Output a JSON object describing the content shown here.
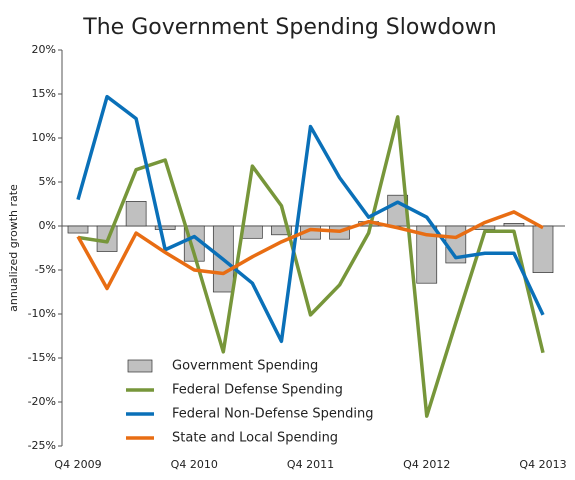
{
  "chart_data": {
    "type": "bar-line",
    "title": "The Government Spending Slowdown",
    "y_label": "annualized growth rate",
    "categories": [
      "Q4 2009",
      null,
      null,
      null,
      "Q4 2010",
      null,
      null,
      null,
      "Q4 2011",
      null,
      null,
      null,
      "Q4 2012",
      null,
      null,
      null,
      "Q4 2013"
    ],
    "ylim": [
      -25,
      20
    ],
    "yticks": [
      {
        "value": -25,
        "label": "-25%"
      },
      {
        "value": -20,
        "label": "-20%"
      },
      {
        "value": -15,
        "label": "-15%"
      },
      {
        "value": -10,
        "label": "-10%"
      },
      {
        "value": -5,
        "label": "-5%"
      },
      {
        "value": 0,
        "label": "0%"
      },
      {
        "value": 5,
        "label": "5%"
      },
      {
        "value": 10,
        "label": "10%"
      },
      {
        "value": 15,
        "label": "15%"
      },
      {
        "value": 20,
        "label": "20%"
      }
    ],
    "series": [
      {
        "name": "Government Spending",
        "kind": "bar",
        "color": "#c0c0c0",
        "values": [
          -0.8,
          -2.9,
          2.8,
          -0.4,
          -4.0,
          -7.5,
          -1.4,
          -1.0,
          -1.5,
          -1.5,
          0.5,
          3.5,
          -6.5,
          -4.2,
          -0.4,
          0.3,
          -5.3
        ]
      },
      {
        "name": "Federal Defense Spending",
        "kind": "line",
        "color": "#77963a",
        "values": [
          -1.3,
          -1.8,
          6.4,
          7.5,
          -3.2,
          -14.3,
          6.8,
          2.3,
          -10.1,
          -6.7,
          -0.8,
          12.4,
          -21.6,
          -11.0,
          -0.6,
          -0.6,
          -14.4
        ]
      },
      {
        "name": "Federal Non-Defense Spending",
        "kind": "line",
        "color": "#0a70b8",
        "values": [
          3.0,
          14.7,
          12.2,
          -2.7,
          -1.2,
          -3.8,
          -6.5,
          -13.1,
          11.3,
          5.5,
          1.0,
          2.7,
          1.0,
          -3.6,
          -3.1,
          -3.1,
          -10.1
        ]
      },
      {
        "name": "State and Local Spending",
        "kind": "line",
        "color": "#e86d13",
        "values": [
          -1.2,
          -7.1,
          -0.8,
          -3.0,
          -5.0,
          -5.4,
          -3.5,
          -1.8,
          -0.4,
          -0.6,
          0.5,
          -0.2,
          -1.0,
          -1.3,
          0.4,
          1.6,
          -0.2
        ]
      }
    ]
  }
}
